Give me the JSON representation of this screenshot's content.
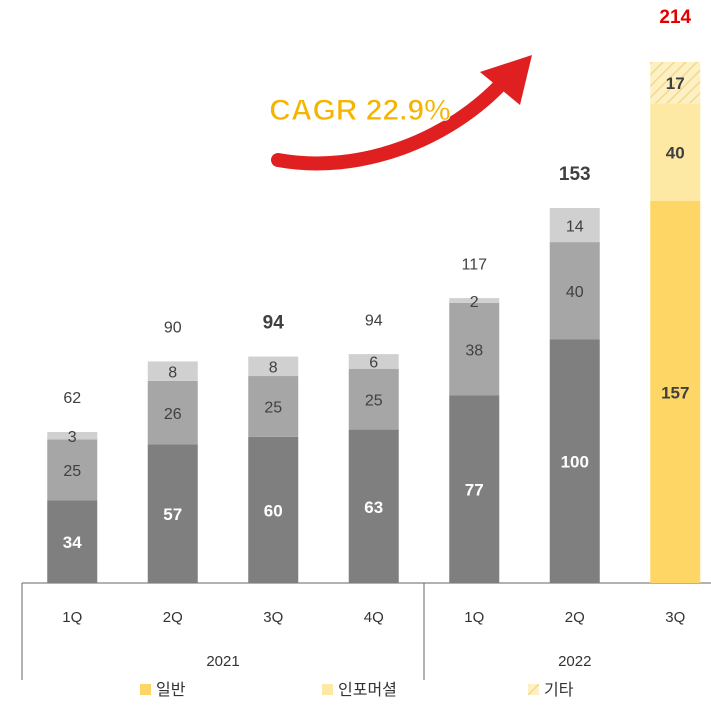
{
  "chart_data": {
    "type": "stacked_bar",
    "annotation": "CAGR 22.9%",
    "categories": [
      "1Q",
      "2Q",
      "3Q",
      "4Q",
      "1Q",
      "2Q",
      "3Q"
    ],
    "groups": [
      {
        "label": "2021",
        "span": 4
      },
      {
        "label": "2022",
        "span": 3
      }
    ],
    "series": [
      {
        "name": "일반",
        "color": "#fdd665",
        "past_color": "#7f7f7f",
        "values": [
          34,
          57,
          60,
          63,
          77,
          100,
          157
        ]
      },
      {
        "name": "인포머셜",
        "color": "#fee9a4",
        "past_color": "#a6a6a6",
        "values": [
          25,
          26,
          25,
          25,
          38,
          40,
          40
        ]
      },
      {
        "name": "기타",
        "color": "#fdf0c4",
        "past_color": "#d0d0d0",
        "values": [
          3,
          8,
          8,
          6,
          2,
          14,
          17
        ]
      }
    ],
    "totals": [
      62,
      90,
      94,
      94,
      117,
      153,
      214
    ]
  }
}
